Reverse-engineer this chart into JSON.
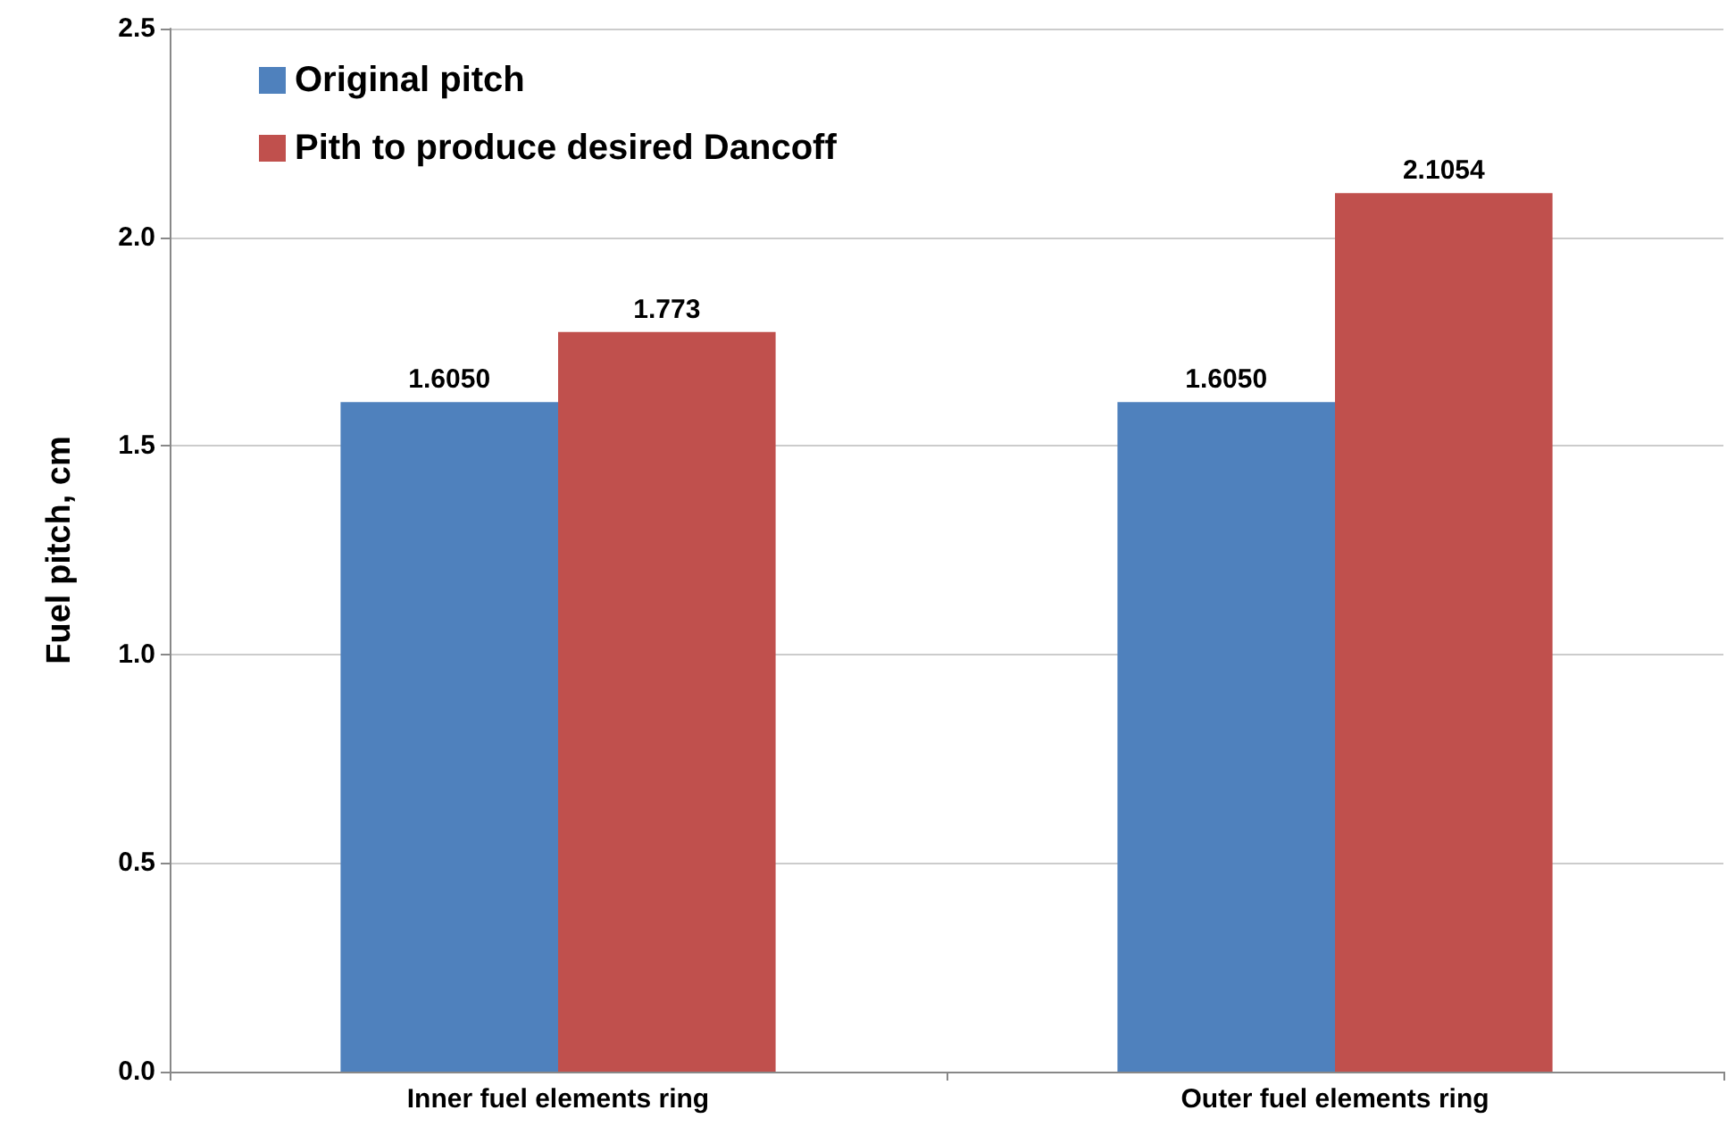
{
  "chart_data": {
    "type": "bar",
    "ylabel": "Fuel pitch, cm",
    "categories": [
      "Inner fuel elements ring",
      "Outer fuel elements ring"
    ],
    "series": [
      {
        "name": "Original pitch",
        "color": "#4f81bd",
        "values": [
          1.605,
          1.605
        ],
        "value_labels": [
          "1.6050",
          "1.6050"
        ]
      },
      {
        "name": "Pith to produce desired Dancoff",
        "color": "#c0504d",
        "values": [
          1.773,
          2.1054
        ],
        "value_labels": [
          "1.773",
          "2.1054"
        ]
      }
    ],
    "ylim": [
      0,
      2.5
    ],
    "yticks": [
      {
        "value": 0,
        "label": "0.0"
      },
      {
        "value": 0.5,
        "label": "0.5"
      },
      {
        "value": 1,
        "label": "1.0"
      },
      {
        "value": 1.5,
        "label": "1.5"
      },
      {
        "value": 2,
        "label": "2.0"
      },
      {
        "value": 2.5,
        "label": "2.5"
      }
    ],
    "grid": "y",
    "legend": "top left"
  }
}
